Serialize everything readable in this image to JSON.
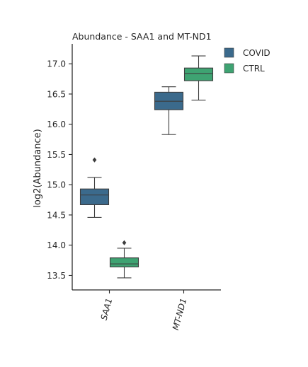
{
  "chart_data": {
    "type": "box",
    "title": "Abundance - SAA1 and MT-ND1",
    "xlabel": "",
    "ylabel": "log2(Abundance)",
    "ylim": [
      13.26,
      17.33
    ],
    "yticks": [
      13.5,
      14.0,
      14.5,
      15.0,
      15.5,
      16.0,
      16.5,
      17.0
    ],
    "ytick_labels": [
      "13.5",
      "14.0",
      "14.5",
      "15.0",
      "15.5",
      "16.0",
      "16.5",
      "17.0"
    ],
    "categories": [
      "SAA1",
      "MT-ND1"
    ],
    "legend_position": "upper right, outside plot",
    "grid": false,
    "series": [
      {
        "name": "COVID",
        "color": "#3b6a8c",
        "boxes": [
          {
            "category": "SAA1",
            "whislo": 14.46,
            "q1": 14.67,
            "med": 14.83,
            "q3": 14.93,
            "whishi": 15.12,
            "fliers": [
              15.41
            ]
          },
          {
            "category": "MT-ND1",
            "whislo": 15.83,
            "q1": 16.24,
            "med": 16.38,
            "q3": 16.53,
            "whishi": 16.62,
            "fliers": []
          }
        ]
      },
      {
        "name": "CTRL",
        "color": "#3ea372",
        "boxes": [
          {
            "category": "SAA1",
            "whislo": 13.46,
            "q1": 13.64,
            "med": 13.69,
            "q3": 13.79,
            "whishi": 13.95,
            "fliers": [
              14.04
            ]
          },
          {
            "category": "MT-ND1",
            "whislo": 16.4,
            "q1": 16.72,
            "med": 16.84,
            "q3": 16.93,
            "whishi": 17.13,
            "fliers": []
          }
        ]
      }
    ]
  }
}
